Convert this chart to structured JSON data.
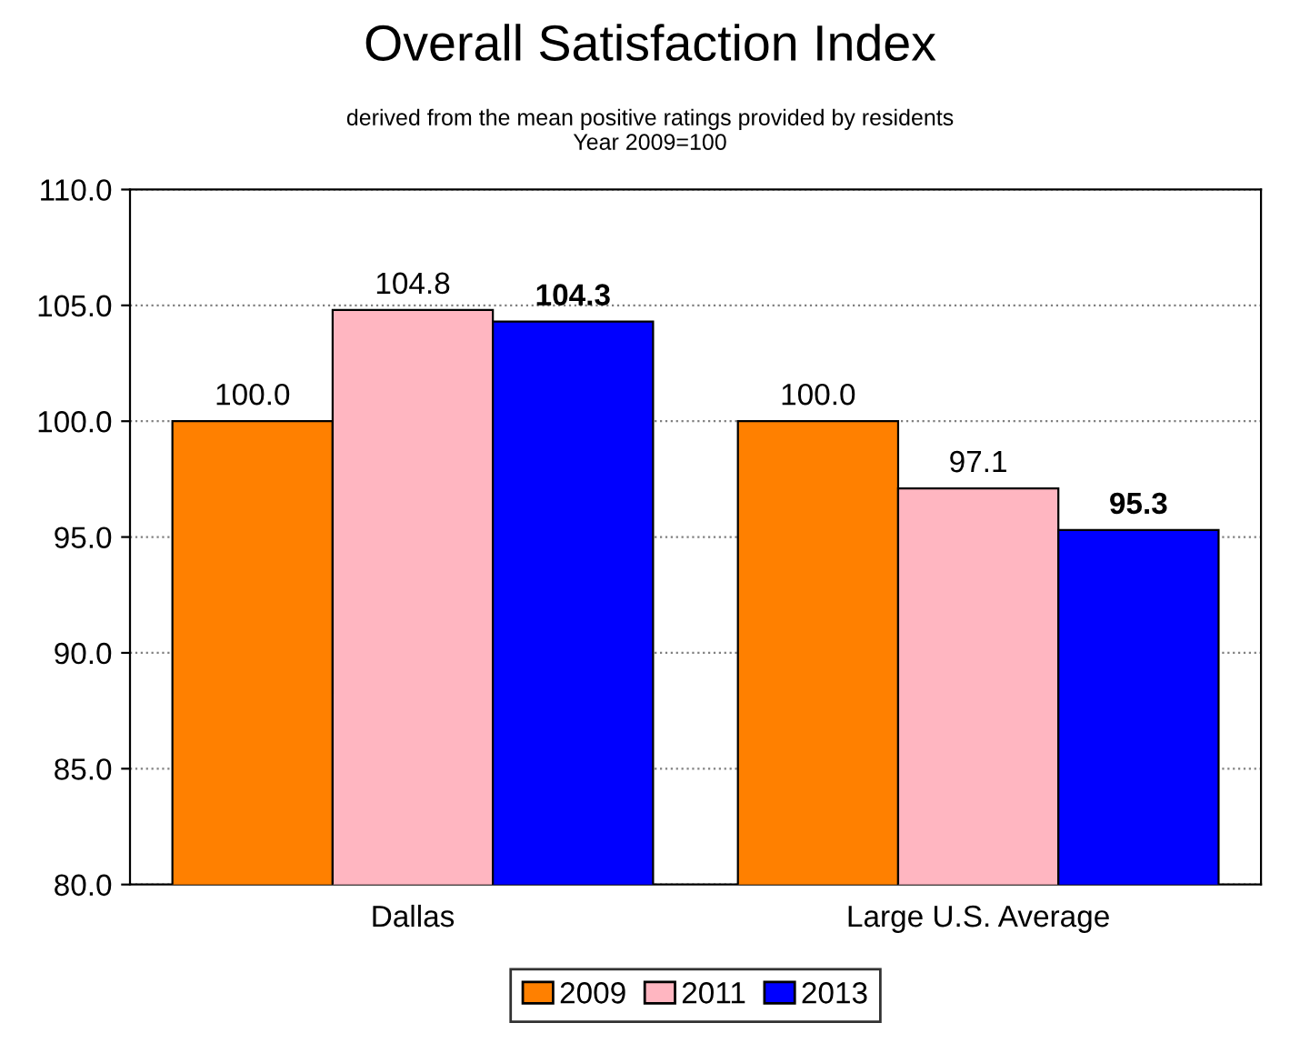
{
  "chart_data": {
    "type": "bar",
    "title": "Overall Satisfaction Index",
    "subtitle": "derived from the mean positive ratings provided by residents\nYear 2009=100",
    "categories": [
      "Dallas",
      "Large U.S. Average"
    ],
    "series": [
      {
        "name": "2009",
        "color": "#ff8000",
        "values": [
          100.0,
          100.0
        ],
        "value_labels": [
          "100.0",
          "100.0"
        ]
      },
      {
        "name": "2011",
        "color": "#ffb6c1",
        "values": [
          104.8,
          97.1
        ],
        "value_labels": [
          "104.8",
          "97.1"
        ]
      },
      {
        "name": "2013",
        "color": "#0000ff",
        "values": [
          104.3,
          95.3
        ],
        "value_labels": [
          "104.3",
          "95.3"
        ]
      }
    ],
    "ylim": [
      80,
      110
    ],
    "yticks": [
      {
        "value": 80,
        "label": "80.0"
      },
      {
        "value": 85,
        "label": "85.0"
      },
      {
        "value": 90,
        "label": "90.0"
      },
      {
        "value": 95,
        "label": "95.0"
      },
      {
        "value": 100,
        "label": "100.0"
      },
      {
        "value": 105,
        "label": "105.0"
      },
      {
        "value": 110,
        "label": "110.0"
      }
    ],
    "grid": "y",
    "legend": "bottom"
  }
}
